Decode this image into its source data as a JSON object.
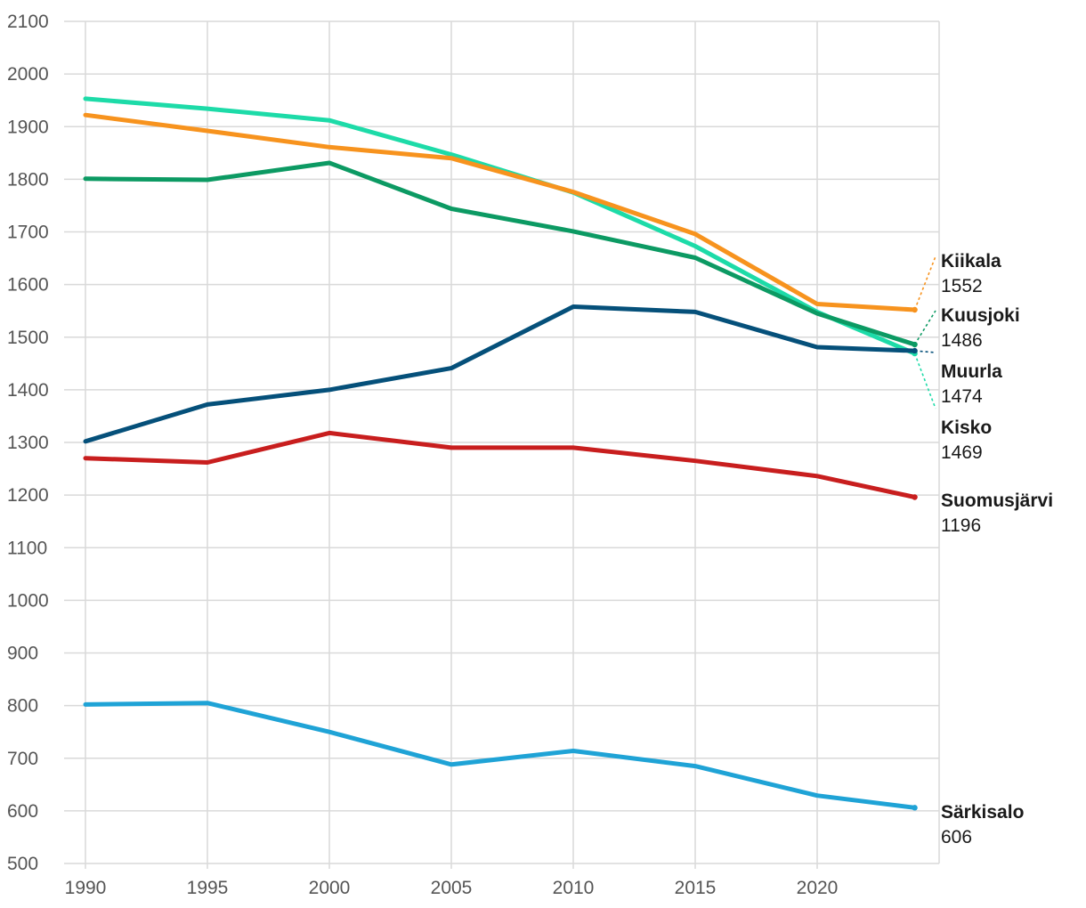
{
  "chart_data": {
    "type": "line",
    "title": "",
    "xlabel": "",
    "ylabel": "",
    "ylim": [
      500,
      2100
    ],
    "xlim": [
      1990,
      2025
    ],
    "grid": true,
    "x_ticks": [
      "1990",
      "1995",
      "2000",
      "2005",
      "2010",
      "2015",
      "2020"
    ],
    "y_ticks": [
      "500",
      "600",
      "700",
      "800",
      "900",
      "1000",
      "1100",
      "1200",
      "1300",
      "1400",
      "1500",
      "1600",
      "1700",
      "1800",
      "1900",
      "2000",
      "2100"
    ],
    "x": [
      1990,
      1995,
      2000,
      2005,
      2010,
      2015,
      2020,
      2024
    ],
    "series": [
      {
        "name": "Kisko",
        "color": "#1ddba8",
        "values": [
          1953,
          1934,
          1912,
          1847,
          1775,
          1673,
          1548,
          1469
        ],
        "label_value": "1469"
      },
      {
        "name": "Kiikala",
        "color": "#f7931e",
        "values": [
          1922,
          1892,
          1861,
          1840,
          1776,
          1696,
          1563,
          1552
        ],
        "label_value": "1552"
      },
      {
        "name": "Kuusjoki",
        "color": "#0c9a63",
        "values": [
          1801,
          1799,
          1831,
          1744,
          1701,
          1651,
          1545,
          1486
        ],
        "label_value": "1486"
      },
      {
        "name": "Muurla",
        "color": "#05507a",
        "values": [
          1302,
          1372,
          1400,
          1441,
          1558,
          1548,
          1481,
          1474
        ],
        "label_value": "1474"
      },
      {
        "name": "Suomusjärvi",
        "color": "#c81e1e",
        "values": [
          1270,
          1262,
          1318,
          1290,
          1290,
          1265,
          1236,
          1196
        ],
        "label_value": "1196"
      },
      {
        "name": "Särkisalo",
        "color": "#1fa3d6",
        "values": [
          802,
          805,
          750,
          688,
          714,
          685,
          629,
          606
        ],
        "label_value": "606"
      }
    ]
  }
}
